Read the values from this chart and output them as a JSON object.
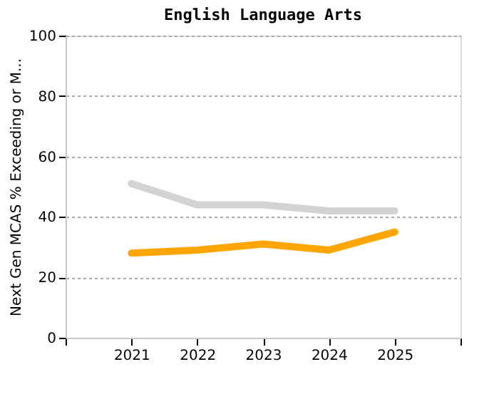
{
  "chart_data": {
    "type": "line",
    "title": "English Language Arts",
    "ylabel": "Next Gen MCAS % Exceeding or M...",
    "x": [
      2021,
      2022,
      2023,
      2024,
      2025
    ],
    "series": [
      {
        "color": "#d3d3d3",
        "values": [
          51,
          44,
          44,
          42,
          42
        ]
      },
      {
        "color": "#ffa500",
        "values": [
          28,
          29,
          31,
          29,
          35
        ]
      }
    ],
    "xlim": [
      2020,
      2026
    ],
    "xticks": [
      {
        "value": 2020,
        "label": null
      },
      2021,
      2022,
      2023,
      2024,
      2025,
      {
        "value": 2026,
        "label": null
      }
    ],
    "ylim": [
      0,
      100
    ],
    "yticks": [
      0,
      20,
      40,
      60,
      80,
      100
    ],
    "grid": "y",
    "marker": "none",
    "line_style": "solid"
  }
}
